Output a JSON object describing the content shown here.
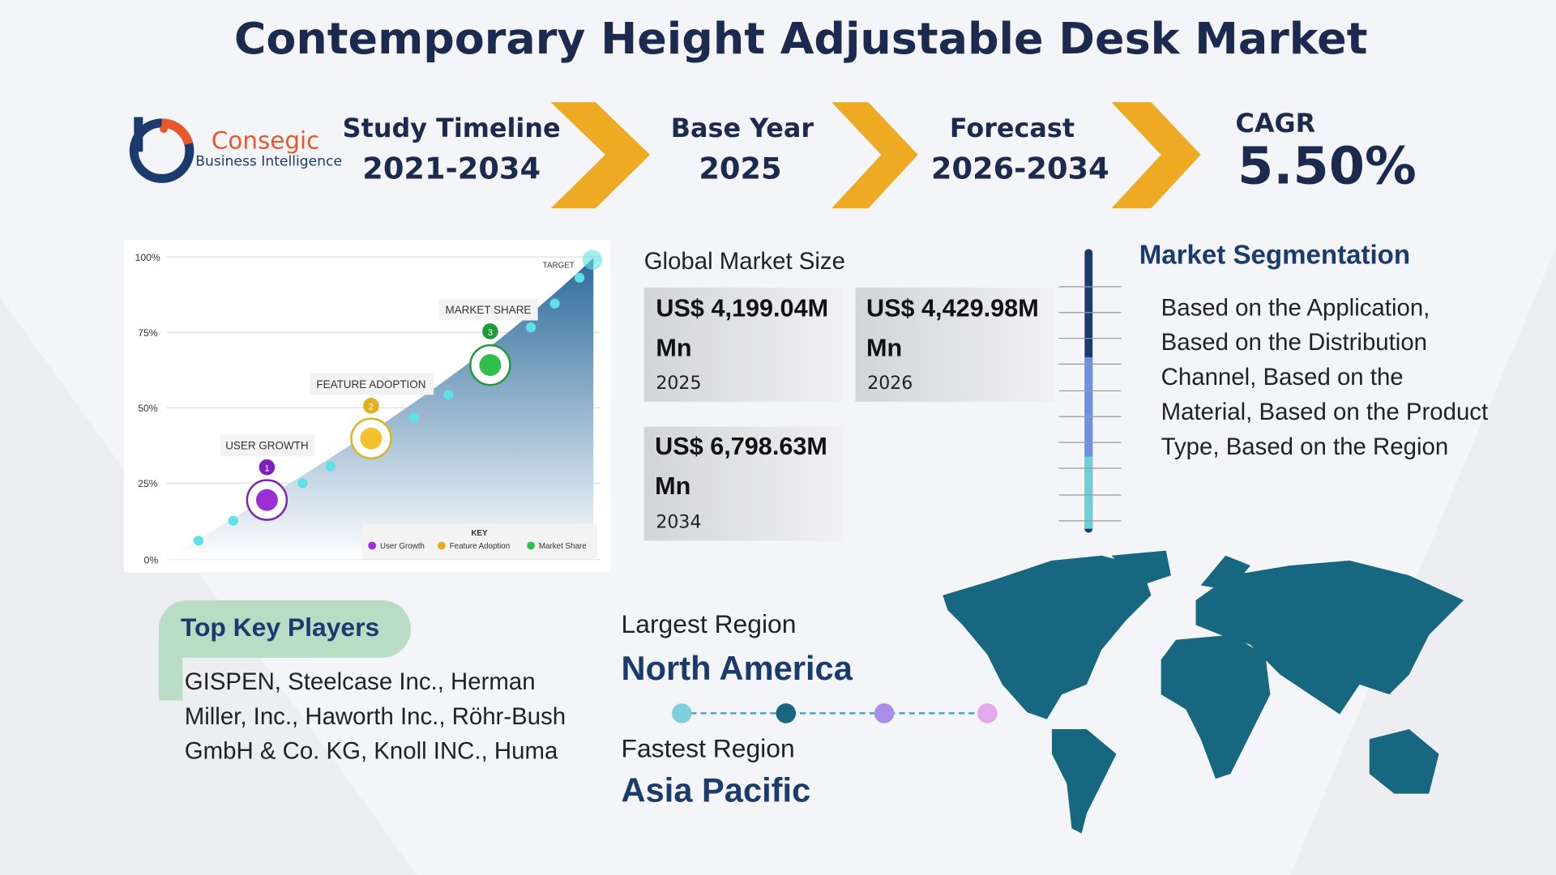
{
  "title": "Contemporary Height Adjustable Desk Market",
  "logo": {
    "name": "Consegic",
    "tagline": "Business Intelligence"
  },
  "timeline": [
    {
      "label": "Study Timeline",
      "value": "2021-2034"
    },
    {
      "label": "Base Year",
      "value": "2025"
    },
    {
      "label": "Forecast",
      "value": "2026-2034"
    },
    {
      "label": "CAGR",
      "value": "5.50%"
    }
  ],
  "illustration": {
    "y_labels": [
      "100%",
      "75%",
      "50%",
      "25%",
      "0%"
    ],
    "target": "TARGET",
    "stages": [
      {
        "label": "USER GROWTH",
        "number": "1"
      },
      {
        "label": "FEATURE ADOPTION",
        "number": "2"
      },
      {
        "label": "MARKET SHARE",
        "number": "3"
      }
    ],
    "key": {
      "title": "KEY",
      "items": [
        "User Growth",
        "Feature Adoption",
        "Market Share"
      ]
    }
  },
  "market_size": {
    "title": "Global Market Size",
    "items": [
      {
        "value": "US$ 4,199.04M Mn",
        "year": "2025"
      },
      {
        "value": "US$ 4,429.98M Mn",
        "year": "2026"
      },
      {
        "value": "US$ 6,798.63M Mn",
        "year": "2034"
      }
    ]
  },
  "segmentation": {
    "title": "Market Segmentation",
    "text": "Based on the Application, Based on the Distribution Channel, Based on the Material, Based on the Product Type, Based on the Region"
  },
  "key_players": {
    "title": "Top Key Players",
    "text": "GISPEN, Steelcase Inc., Herman Miller, Inc., Haworth Inc., Röhr-Bush GmbH & Co. KG, Knoll INC., Huma"
  },
  "regions": {
    "largest_label": "Largest Region",
    "largest": "North America",
    "fastest_label": "Fastest Region",
    "fastest": "Asia Pacific"
  }
}
